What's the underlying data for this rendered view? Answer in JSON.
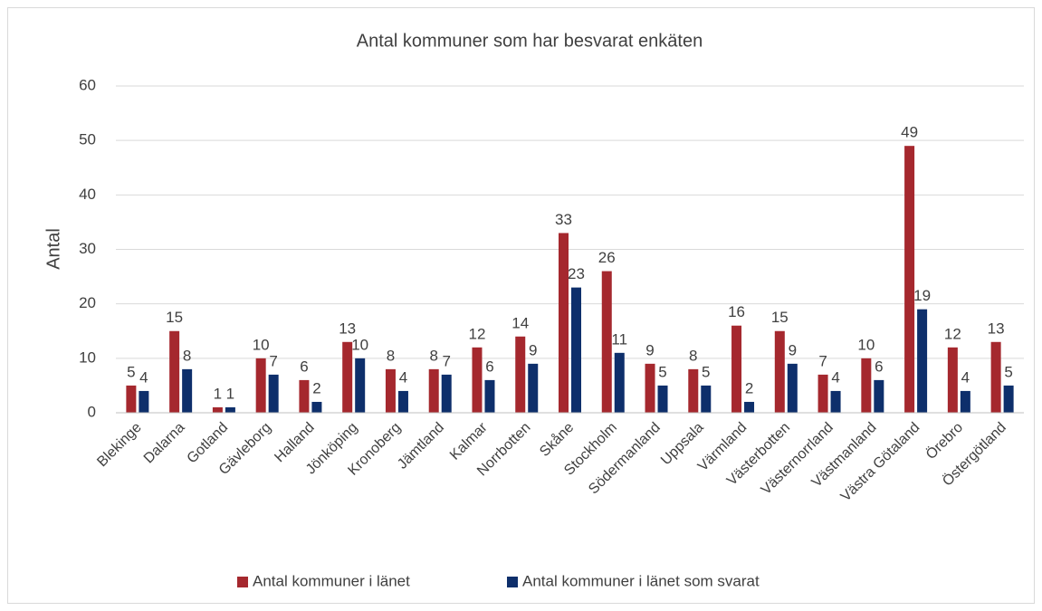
{
  "chart_data": {
    "type": "bar",
    "title": "Antal kommuner som har besvarat enkäten",
    "y_label": "Antal",
    "categories": [
      "Blekinge",
      "Dalarna",
      "Gotland",
      "Gävleborg",
      "Halland",
      "Jönköping",
      "Kronoberg",
      "Jämtland",
      "Kalmar",
      "Norrbotten",
      "Skåne",
      "Stockholm",
      "Södermanland",
      "Uppsala",
      "Värmland",
      "Västerbotten",
      "Västernorrland",
      "Västmanland",
      "Västra Götaland",
      "Örebro",
      "Östergötland"
    ],
    "series": [
      {
        "name": "Antal kommuner i länet",
        "color": "#a5282e",
        "values": [
          5,
          15,
          1,
          10,
          6,
          13,
          8,
          8,
          12,
          14,
          33,
          26,
          9,
          8,
          16,
          15,
          7,
          10,
          49,
          12,
          13
        ]
      },
      {
        "name": "Antal kommuner i länet som svarat",
        "color": "#0e2f6b",
        "values": [
          4,
          8,
          1,
          7,
          2,
          10,
          4,
          7,
          6,
          9,
          23,
          11,
          5,
          5,
          2,
          9,
          4,
          6,
          19,
          4,
          5
        ]
      }
    ],
    "ylim": [
      0,
      60
    ],
    "yticks": [
      0,
      10,
      20,
      30,
      40,
      50,
      60
    ],
    "grid": true,
    "legend": "bottom"
  }
}
